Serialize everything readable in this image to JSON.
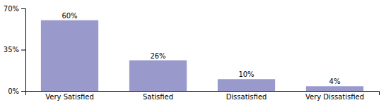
{
  "chart_data": {
    "type": "bar",
    "categories": [
      "Very Satisfied",
      "Satisfied",
      "Dissatisfied",
      "Very Dissatisfied"
    ],
    "values": [
      60,
      26,
      10,
      4
    ],
    "value_labels": [
      "60%",
      "26%",
      "10%",
      "4%"
    ],
    "data_labels": true,
    "color": "#9999cc",
    "ylim": [
      0,
      70
    ],
    "yticks": [
      {
        "value": 0,
        "label": "0%"
      },
      {
        "value": 35,
        "label": "35%"
      },
      {
        "value": 70,
        "label": "70%"
      }
    ],
    "grid": false
  }
}
